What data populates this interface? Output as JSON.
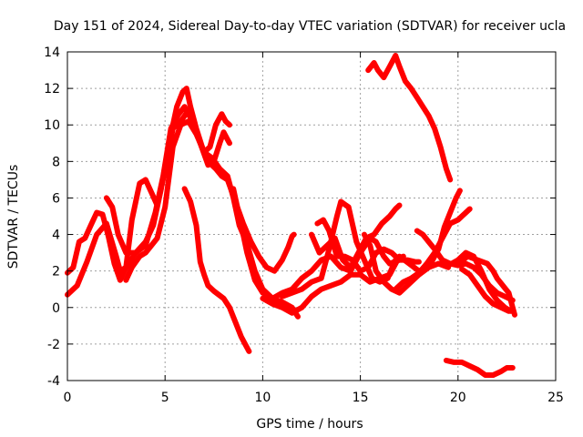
{
  "chart_data": {
    "type": "line",
    "title": "Day 151 of 2024, Sidereal Day-to-day VTEC variation (SDTVAR) for receiver ucla",
    "xlabel": "GPS time / hours",
    "ylabel": "SDTVAR / TECUs",
    "xlim": [
      0,
      25
    ],
    "ylim": [
      -4,
      14
    ],
    "xticks": [
      0,
      5,
      10,
      15,
      20,
      25
    ],
    "yticks": [
      -4,
      -2,
      0,
      2,
      4,
      6,
      8,
      10,
      12,
      14
    ],
    "grid": true,
    "color": "#ff0000",
    "marker": "+",
    "series": [
      {
        "name": "trace-1",
        "points": [
          [
            0,
            0.7
          ],
          [
            0.5,
            1.2
          ],
          [
            1.0,
            2.5
          ],
          [
            1.5,
            4.0
          ],
          [
            2.0,
            4.6
          ],
          [
            2.5,
            2.8
          ],
          [
            2.7,
            2.0
          ],
          [
            3.0,
            2.2
          ],
          [
            3.5,
            3.0
          ],
          [
            4.0,
            3.6
          ],
          [
            4.4,
            4.5
          ],
          [
            4.8,
            6.5
          ],
          [
            5.2,
            9.0
          ],
          [
            5.6,
            11.0
          ],
          [
            5.9,
            11.8
          ],
          [
            6.1,
            12.0
          ],
          [
            6.3,
            11.0
          ],
          [
            6.6,
            9.8
          ],
          [
            6.9,
            8.8
          ],
          [
            7.2,
            8.0
          ],
          [
            7.6,
            7.6
          ],
          [
            7.9,
            7.2
          ],
          [
            8.2,
            7.0
          ],
          [
            8.6,
            5.8
          ],
          [
            9.0,
            4.6
          ],
          [
            9.4,
            3.6
          ],
          [
            9.8,
            2.8
          ],
          [
            10.2,
            2.2
          ],
          [
            10.6,
            2.0
          ],
          [
            11.0,
            2.6
          ],
          [
            11.3,
            3.3
          ],
          [
            11.5,
            3.9
          ],
          [
            11.6,
            4.0
          ]
        ]
      },
      {
        "name": "trace-2",
        "points": [
          [
            0,
            1.9
          ],
          [
            0.3,
            2.2
          ],
          [
            0.6,
            3.6
          ],
          [
            0.9,
            3.8
          ],
          [
            1.2,
            4.5
          ],
          [
            1.5,
            5.2
          ],
          [
            1.8,
            5.1
          ],
          [
            2.1,
            3.9
          ],
          [
            2.4,
            2.4
          ],
          [
            2.7,
            1.5
          ],
          [
            3.0,
            2.2
          ],
          [
            3.3,
            4.8
          ],
          [
            3.7,
            6.8
          ],
          [
            4.0,
            7.0
          ],
          [
            4.3,
            6.3
          ],
          [
            4.6,
            5.6
          ],
          [
            5.0,
            7.5
          ],
          [
            5.4,
            9.8
          ],
          [
            5.8,
            10.2
          ],
          [
            6.2,
            10.8
          ],
          [
            6.6,
            9.6
          ],
          [
            7.0,
            8.5
          ],
          [
            7.4,
            8.2
          ],
          [
            7.8,
            7.6
          ],
          [
            8.2,
            7.2
          ],
          [
            8.5,
            6.0
          ],
          [
            8.8,
            4.5
          ],
          [
            9.2,
            3.5
          ],
          [
            9.6,
            2.0
          ],
          [
            10.0,
            1.0
          ],
          [
            10.5,
            0.5
          ],
          [
            11.0,
            0.3
          ],
          [
            11.5,
            0.0
          ],
          [
            11.8,
            -0.5
          ]
        ]
      },
      {
        "name": "trace-3",
        "points": [
          [
            2.0,
            6.0
          ],
          [
            2.3,
            5.5
          ],
          [
            2.6,
            4.0
          ],
          [
            3.0,
            3.0
          ],
          [
            3.5,
            3.0
          ],
          [
            4.0,
            3.4
          ],
          [
            4.5,
            5.2
          ],
          [
            4.9,
            7.2
          ],
          [
            5.3,
            9.8
          ],
          [
            5.7,
            10.6
          ],
          [
            6.0,
            11.0
          ],
          [
            6.4,
            10.2
          ],
          [
            6.8,
            9.0
          ],
          [
            7.2,
            7.8
          ],
          [
            7.5,
            8.0
          ],
          [
            7.8,
            9.0
          ],
          [
            8.0,
            9.6
          ],
          [
            8.2,
            9.2
          ],
          [
            8.3,
            9.0
          ]
        ]
      },
      {
        "name": "trace-4",
        "points": [
          [
            3.0,
            1.5
          ],
          [
            3.3,
            2.2
          ],
          [
            3.7,
            2.8
          ],
          [
            4.0,
            3.0
          ],
          [
            4.3,
            3.4
          ],
          [
            4.6,
            3.8
          ],
          [
            5.0,
            5.5
          ],
          [
            5.4,
            8.8
          ],
          [
            5.8,
            10.0
          ],
          [
            6.2,
            10.2
          ],
          [
            6.6,
            9.5
          ],
          [
            7.0,
            8.5
          ],
          [
            7.3,
            8.8
          ],
          [
            7.6,
            10.0
          ],
          [
            7.9,
            10.6
          ],
          [
            8.1,
            10.2
          ],
          [
            8.3,
            10.0
          ]
        ]
      },
      {
        "name": "trace-5",
        "points": [
          [
            6.0,
            6.5
          ],
          [
            6.3,
            5.8
          ],
          [
            6.6,
            4.5
          ],
          [
            6.8,
            2.5
          ],
          [
            7.0,
            1.8
          ],
          [
            7.2,
            1.2
          ],
          [
            7.5,
            0.9
          ],
          [
            8.0,
            0.5
          ],
          [
            8.3,
            0.0
          ],
          [
            8.6,
            -0.8
          ],
          [
            8.9,
            -1.6
          ],
          [
            9.2,
            -2.2
          ],
          [
            9.3,
            -2.4
          ]
        ]
      },
      {
        "name": "trace-6",
        "points": [
          [
            8.5,
            6.5
          ],
          [
            8.8,
            5.0
          ],
          [
            9.2,
            3.0
          ],
          [
            9.6,
            1.5
          ],
          [
            10.0,
            0.8
          ],
          [
            10.5,
            0.5
          ],
          [
            11.0,
            0.8
          ],
          [
            11.5,
            1.0
          ],
          [
            12.0,
            1.6
          ],
          [
            12.5,
            2.0
          ],
          [
            13.0,
            2.6
          ],
          [
            13.5,
            2.8
          ],
          [
            14.0,
            2.2
          ],
          [
            14.5,
            2.0
          ],
          [
            15.0,
            3.0
          ],
          [
            15.5,
            3.8
          ],
          [
            15.8,
            3.6
          ],
          [
            16.2,
            2.8
          ],
          [
            16.5,
            2.4
          ],
          [
            17.0,
            2.6
          ]
        ]
      },
      {
        "name": "trace-7",
        "points": [
          [
            10.0,
            0.5
          ],
          [
            10.5,
            0.2
          ],
          [
            11.0,
            0.0
          ],
          [
            11.5,
            -0.3
          ],
          [
            12.0,
            0.0
          ],
          [
            12.5,
            0.6
          ],
          [
            13.0,
            1.0
          ],
          [
            13.5,
            1.2
          ],
          [
            14.0,
            1.4
          ],
          [
            14.5,
            1.8
          ],
          [
            15.0,
            1.8
          ],
          [
            15.5,
            1.4
          ],
          [
            16.0,
            1.6
          ],
          [
            16.5,
            1.8
          ],
          [
            17.0,
            2.8
          ],
          [
            17.5,
            2.4
          ],
          [
            18.0,
            2.0
          ],
          [
            18.5,
            2.2
          ],
          [
            19.0,
            2.4
          ],
          [
            19.5,
            2.2
          ]
        ]
      },
      {
        "name": "trace-8",
        "points": [
          [
            11.0,
            0.6
          ],
          [
            11.5,
            0.8
          ],
          [
            12.0,
            1.0
          ],
          [
            12.5,
            1.4
          ],
          [
            13.0,
            1.6
          ],
          [
            13.4,
            3.2
          ],
          [
            13.8,
            5.0
          ],
          [
            14.0,
            5.8
          ],
          [
            14.4,
            5.5
          ],
          [
            14.8,
            3.6
          ],
          [
            15.2,
            2.6
          ],
          [
            15.6,
            1.6
          ],
          [
            16.0,
            1.4
          ],
          [
            16.4,
            1.6
          ],
          [
            16.8,
            2.6
          ],
          [
            17.2,
            2.8
          ]
        ]
      },
      {
        "name": "trace-9",
        "points": [
          [
            12.5,
            4.0
          ],
          [
            12.9,
            3.0
          ],
          [
            13.3,
            3.4
          ],
          [
            13.7,
            3.8
          ],
          [
            14.1,
            2.6
          ],
          [
            14.5,
            2.2
          ],
          [
            14.9,
            3.0
          ],
          [
            15.3,
            3.8
          ],
          [
            15.7,
            4.0
          ],
          [
            16.1,
            4.6
          ],
          [
            16.5,
            5.0
          ],
          [
            16.8,
            5.4
          ],
          [
            17.0,
            5.6
          ]
        ]
      },
      {
        "name": "trace-10",
        "points": [
          [
            12.8,
            4.6
          ],
          [
            13.1,
            4.8
          ],
          [
            13.4,
            4.2
          ],
          [
            13.8,
            2.8
          ],
          [
            14.2,
            2.8
          ],
          [
            14.6,
            2.6
          ],
          [
            15.0,
            2.0
          ],
          [
            15.4,
            2.2
          ],
          [
            15.8,
            3.0
          ],
          [
            16.2,
            3.2
          ],
          [
            16.6,
            3.0
          ],
          [
            17.0,
            2.6
          ],
          [
            17.4,
            2.6
          ],
          [
            17.8,
            2.5
          ],
          [
            18.0,
            2.5
          ]
        ]
      },
      {
        "name": "trace-11",
        "points": [
          [
            15.2,
            4.0
          ],
          [
            15.5,
            3.4
          ],
          [
            15.8,
            2.0
          ],
          [
            16.2,
            1.4
          ],
          [
            16.6,
            1.0
          ],
          [
            17.0,
            0.8
          ],
          [
            17.5,
            1.3
          ],
          [
            18.0,
            1.8
          ],
          [
            18.5,
            2.2
          ],
          [
            19.0,
            3.2
          ],
          [
            19.3,
            4.4
          ],
          [
            19.6,
            5.2
          ],
          [
            19.9,
            6.0
          ],
          [
            20.1,
            6.4
          ]
        ]
      },
      {
        "name": "trace-12",
        "points": [
          [
            16.8,
            1.0
          ],
          [
            17.2,
            1.4
          ],
          [
            17.6,
            1.6
          ],
          [
            18.0,
            1.9
          ],
          [
            18.4,
            2.4
          ],
          [
            18.8,
            3.0
          ],
          [
            19.2,
            3.8
          ],
          [
            19.6,
            4.6
          ],
          [
            20.0,
            4.8
          ],
          [
            20.4,
            5.2
          ],
          [
            20.6,
            5.4
          ]
        ]
      },
      {
        "name": "trace-13",
        "points": [
          [
            17.9,
            4.2
          ],
          [
            18.2,
            4.0
          ],
          [
            18.5,
            3.6
          ],
          [
            18.8,
            3.2
          ],
          [
            19.2,
            2.6
          ],
          [
            19.6,
            2.4
          ],
          [
            20.0,
            2.3
          ],
          [
            20.4,
            2.4
          ],
          [
            20.8,
            2.2
          ],
          [
            21.2,
            1.8
          ],
          [
            21.6,
            1.2
          ],
          [
            22.0,
            0.8
          ],
          [
            22.4,
            0.6
          ],
          [
            22.8,
            0.4
          ]
        ]
      },
      {
        "name": "trace-14",
        "points": [
          [
            19.0,
            2.4
          ],
          [
            19.5,
            2.3
          ],
          [
            20.0,
            2.6
          ],
          [
            20.4,
            3.0
          ],
          [
            20.8,
            2.8
          ],
          [
            21.2,
            2.0
          ],
          [
            21.6,
            1.0
          ],
          [
            22.0,
            0.4
          ],
          [
            22.4,
            0.0
          ],
          [
            22.7,
            -0.2
          ]
        ]
      },
      {
        "name": "trace-15",
        "points": [
          [
            20.0,
            2.4
          ],
          [
            20.5,
            2.8
          ],
          [
            21.0,
            2.6
          ],
          [
            21.5,
            2.4
          ],
          [
            21.8,
            2.0
          ],
          [
            22.0,
            1.6
          ],
          [
            22.3,
            1.2
          ],
          [
            22.6,
            0.8
          ],
          [
            22.8,
            0.0
          ],
          [
            22.9,
            -0.4
          ]
        ]
      },
      {
        "name": "trace-16",
        "points": [
          [
            20.2,
            2.1
          ],
          [
            20.6,
            1.8
          ],
          [
            21.0,
            1.2
          ],
          [
            21.4,
            0.6
          ],
          [
            21.8,
            0.2
          ],
          [
            22.2,
            0.0
          ],
          [
            22.6,
            -0.2
          ]
        ]
      },
      {
        "name": "trace-17",
        "points": [
          [
            15.4,
            13.0
          ],
          [
            15.7,
            13.4
          ],
          [
            15.9,
            13.0
          ],
          [
            16.2,
            12.6
          ],
          [
            16.5,
            13.2
          ],
          [
            16.8,
            13.8
          ],
          [
            17.0,
            13.2
          ],
          [
            17.3,
            12.4
          ],
          [
            17.6,
            12.0
          ],
          [
            17.9,
            11.5
          ],
          [
            18.2,
            11.0
          ],
          [
            18.5,
            10.5
          ],
          [
            18.8,
            9.8
          ],
          [
            19.1,
            8.8
          ],
          [
            19.4,
            7.6
          ],
          [
            19.6,
            7.0
          ]
        ]
      },
      {
        "name": "trace-18",
        "points": [
          [
            19.4,
            -2.9
          ],
          [
            19.8,
            -3.0
          ],
          [
            20.2,
            -3.0
          ],
          [
            20.6,
            -3.2
          ],
          [
            21.0,
            -3.4
          ],
          [
            21.4,
            -3.7
          ],
          [
            21.8,
            -3.7
          ],
          [
            22.2,
            -3.5
          ],
          [
            22.5,
            -3.3
          ],
          [
            22.8,
            -3.3
          ]
        ]
      }
    ]
  }
}
